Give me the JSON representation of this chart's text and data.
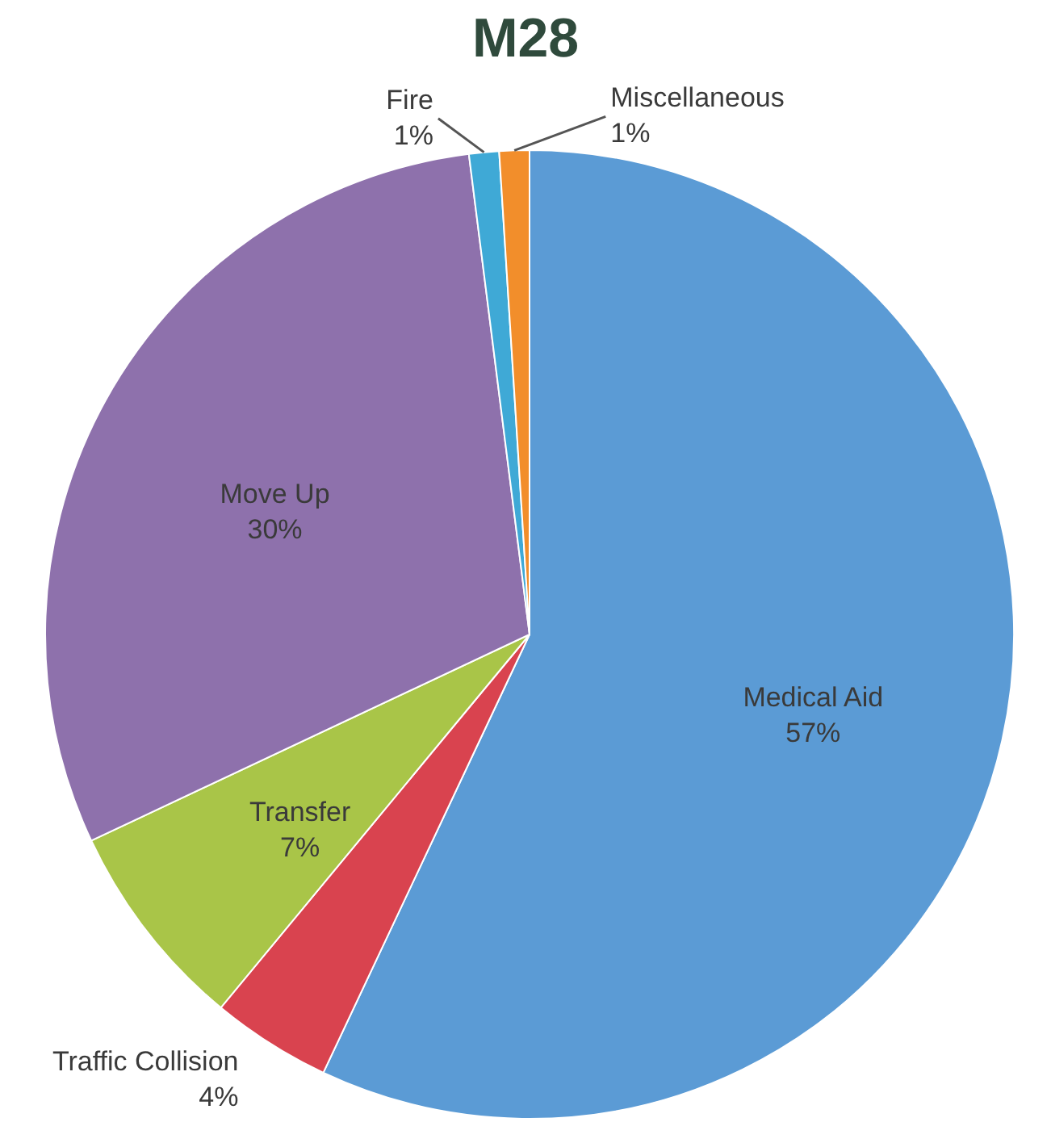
{
  "chart_data": {
    "type": "pie",
    "title": "M28",
    "categories": [
      "Medical Aid",
      "Traffic Collision",
      "Transfer",
      "Move Up",
      "Fire",
      "Miscellaneous"
    ],
    "values": [
      57,
      4,
      7,
      30,
      1,
      1
    ],
    "value_labels": [
      "57%",
      "4%",
      "7%",
      "30%",
      "1%",
      "1%"
    ],
    "colors": [
      "#5b9bd5",
      "#d9434f",
      "#a9c548",
      "#8e71ac",
      "#3fa9d6",
      "#f28e2b"
    ]
  }
}
